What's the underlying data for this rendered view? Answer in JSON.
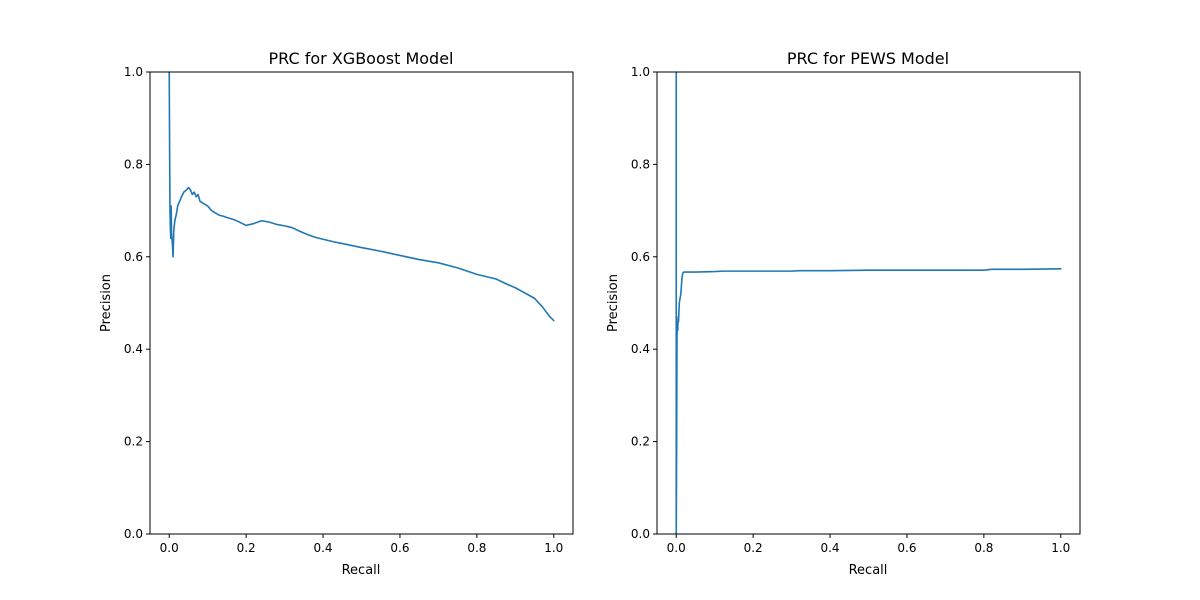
{
  "chart_data": [
    {
      "type": "line",
      "title": "PRC for XGBoost Model",
      "xlabel": "Recall",
      "ylabel": "Precision",
      "xlim": [
        -0.05,
        1.05
      ],
      "ylim": [
        0,
        1
      ],
      "xticks": [
        0.0,
        0.2,
        0.4,
        0.6,
        0.8,
        1.0
      ],
      "xtick_labels": [
        "0.0",
        "0.2",
        "0.4",
        "0.6",
        "0.8",
        "1.0"
      ],
      "yticks": [
        0.0,
        0.2,
        0.4,
        0.6,
        0.8,
        1.0
      ],
      "ytick_labels": [
        "0.0",
        "0.2",
        "0.4",
        "0.6",
        "0.8",
        "1.0"
      ],
      "grid": false,
      "color": "#1f77b4",
      "series": [
        {
          "x": [
            0.0,
            0.001,
            0.002,
            0.003,
            0.004,
            0.005,
            0.006,
            0.008,
            0.01,
            0.012,
            0.015,
            0.018,
            0.022,
            0.027,
            0.032,
            0.038,
            0.045,
            0.05,
            0.055,
            0.06,
            0.065,
            0.07,
            0.075,
            0.08,
            0.09,
            0.1,
            0.11,
            0.12,
            0.13,
            0.14,
            0.15,
            0.17,
            0.19,
            0.2,
            0.22,
            0.24,
            0.26,
            0.28,
            0.3,
            0.32,
            0.34,
            0.36,
            0.38,
            0.4,
            0.43,
            0.46,
            0.5,
            0.55,
            0.6,
            0.65,
            0.7,
            0.75,
            0.8,
            0.85,
            0.88,
            0.9,
            0.92,
            0.95,
            0.97,
            0.99,
            1.0
          ],
          "y": [
            1.0,
            0.83,
            0.7,
            0.66,
            0.64,
            0.71,
            0.65,
            0.63,
            0.6,
            0.66,
            0.68,
            0.69,
            0.71,
            0.72,
            0.73,
            0.74,
            0.745,
            0.75,
            0.745,
            0.735,
            0.74,
            0.73,
            0.735,
            0.72,
            0.715,
            0.71,
            0.7,
            0.695,
            0.69,
            0.688,
            0.685,
            0.68,
            0.672,
            0.668,
            0.672,
            0.678,
            0.675,
            0.67,
            0.667,
            0.663,
            0.655,
            0.648,
            0.642,
            0.638,
            0.632,
            0.627,
            0.62,
            0.612,
            0.603,
            0.594,
            0.587,
            0.576,
            0.562,
            0.552,
            0.54,
            0.533,
            0.524,
            0.51,
            0.492,
            0.47,
            0.462
          ]
        }
      ]
    },
    {
      "type": "line",
      "title": "PRC for PEWS Model",
      "xlabel": "Recall",
      "ylabel": "Precision",
      "xlim": [
        -0.05,
        1.05
      ],
      "ylim": [
        0,
        1
      ],
      "xticks": [
        0.0,
        0.2,
        0.4,
        0.6,
        0.8,
        1.0
      ],
      "xtick_labels": [
        "0.0",
        "0.2",
        "0.4",
        "0.6",
        "0.8",
        "1.0"
      ],
      "yticks": [
        0.0,
        0.2,
        0.4,
        0.6,
        0.8,
        1.0
      ],
      "ytick_labels": [
        "0.0",
        "0.2",
        "0.4",
        "0.6",
        "0.8",
        "1.0"
      ],
      "grid": false,
      "color": "#1f77b4",
      "series": [
        {
          "x": [
            0.0,
            0.0,
            0.001,
            0.002,
            0.003,
            0.004,
            0.005,
            0.006,
            0.008,
            0.01,
            0.012,
            0.015,
            0.017,
            0.02,
            0.03,
            0.05,
            0.1,
            0.12,
            0.2,
            0.3,
            0.32,
            0.4,
            0.5,
            0.6,
            0.7,
            0.8,
            0.82,
            0.9,
            1.0
          ],
          "y": [
            1.0,
            0.0,
            0.17,
            0.43,
            0.46,
            0.44,
            0.47,
            0.46,
            0.5,
            0.51,
            0.52,
            0.555,
            0.565,
            0.567,
            0.567,
            0.567,
            0.568,
            0.569,
            0.569,
            0.569,
            0.57,
            0.57,
            0.571,
            0.571,
            0.571,
            0.571,
            0.573,
            0.573,
            0.574
          ]
        }
      ]
    }
  ]
}
